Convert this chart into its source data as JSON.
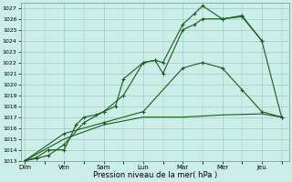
{
  "xlabel": "Pression niveau de la mer( hPa )",
  "background_color": "#cceee8",
  "grid_color": "#99cccc",
  "line_color": "#1a5c1a",
  "ylim": [
    1013,
    1027.5
  ],
  "yticks": [
    1013,
    1014,
    1015,
    1016,
    1017,
    1018,
    1019,
    1020,
    1021,
    1022,
    1023,
    1024,
    1025,
    1026,
    1027
  ],
  "xtick_labels": [
    "Dim",
    "Ven",
    "Sam",
    "Lun",
    "Mar",
    "Mer",
    "Jeu"
  ],
  "xtick_positions": [
    0,
    1,
    2,
    3,
    4,
    5,
    6
  ],
  "line1_x": [
    0.0,
    0.3,
    0.6,
    1.0,
    1.3,
    1.5,
    1.8,
    2.0,
    2.3,
    2.5,
    3.0,
    3.3,
    3.5,
    4.0,
    4.3,
    4.5,
    5.0,
    5.5,
    6.0
  ],
  "line1_y": [
    1013.0,
    1013.3,
    1014.0,
    1014.0,
    1016.3,
    1017.0,
    1017.2,
    1017.5,
    1018.0,
    1020.5,
    1022.0,
    1022.2,
    1021.0,
    1025.0,
    1025.5,
    1026.0,
    1026.0,
    1026.3,
    1024.0
  ],
  "line2_x": [
    0.0,
    0.3,
    0.6,
    1.0,
    1.5,
    2.0,
    2.5,
    3.0,
    3.3,
    3.5,
    4.0,
    4.3,
    4.5,
    5.0,
    5.5,
    6.0,
    6.5
  ],
  "line2_y": [
    1013.0,
    1013.2,
    1013.5,
    1014.5,
    1016.5,
    1017.5,
    1019.0,
    1022.0,
    1022.2,
    1022.0,
    1025.5,
    1026.5,
    1027.2,
    1026.0,
    1026.2,
    1024.0,
    1017.0
  ],
  "line3_x": [
    0.0,
    1.0,
    2.0,
    3.0,
    4.0,
    4.5,
    5.0,
    5.5,
    6.0,
    6.5
  ],
  "line3_y": [
    1013.0,
    1015.5,
    1016.5,
    1017.5,
    1021.5,
    1022.0,
    1021.5,
    1019.5,
    1017.5,
    1017.0
  ],
  "line4_x": [
    0.0,
    1.0,
    2.0,
    3.0,
    4.0,
    5.0,
    6.0,
    6.5
  ],
  "line4_y": [
    1013.0,
    1015.0,
    1016.3,
    1017.0,
    1017.0,
    1017.2,
    1017.3,
    1017.0
  ]
}
